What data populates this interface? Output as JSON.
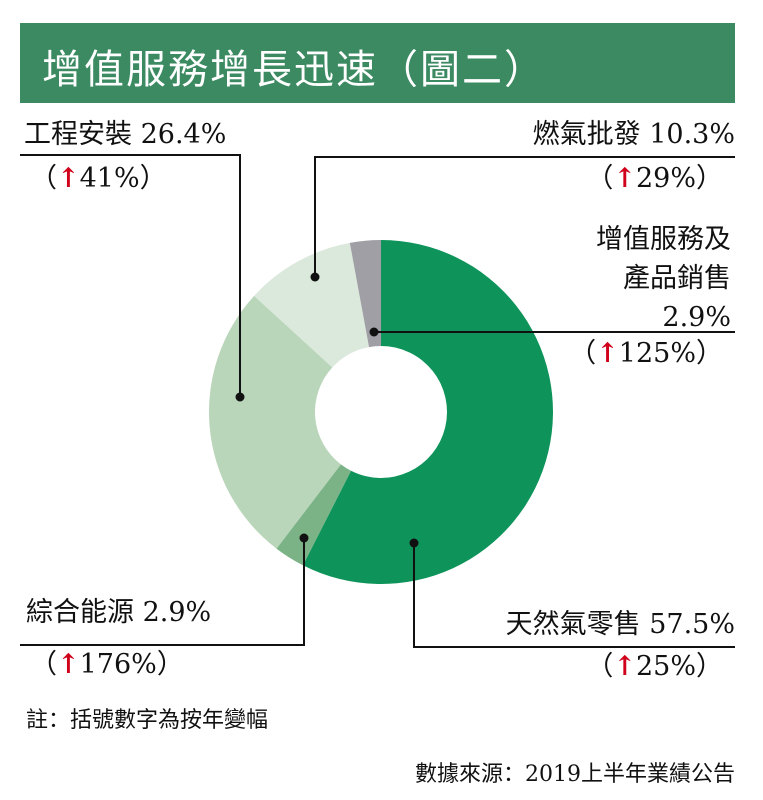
{
  "chart_data": {
    "type": "pie",
    "variant": "donut",
    "title": "增值服務增長迅速（圖二）",
    "slices": [
      {
        "label": "天然氣零售",
        "value": 57.5,
        "value_label": "57.5%",
        "change": "25%",
        "color": "#0e945a"
      },
      {
        "label": "綜合能源",
        "value": 2.9,
        "value_label": "2.9%",
        "change": "176%",
        "color": "#7bb387"
      },
      {
        "label": "工程安裝",
        "value": 26.4,
        "value_label": "26.4%",
        "change": "41%",
        "color": "#bad6ba"
      },
      {
        "label": "燃氣批發",
        "value": 10.3,
        "value_label": "10.3%",
        "change": "29%",
        "color": "#dbe9dc"
      },
      {
        "label": "增值服務及產品銷售",
        "label_lines": [
          "增值服務及",
          "產品銷售"
        ],
        "value": 2.9,
        "value_label": "2.9%",
        "change": "125%",
        "color": "#a09fa5"
      }
    ],
    "start": "top, clockwise",
    "header_color": "#3b8a62",
    "arrow_color": "#d0021b"
  },
  "notes": {
    "footnote": "註：括號數字為按年變幅",
    "source": "數據來源：2019上半年業績公告"
  },
  "symbols": {
    "open": "（",
    "close": "）",
    "arrow": "↑"
  }
}
